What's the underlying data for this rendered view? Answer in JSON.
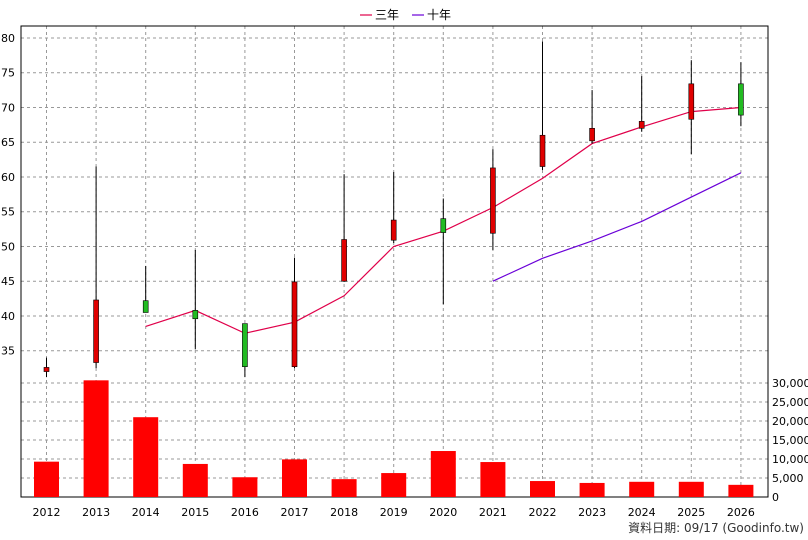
{
  "chart_data": {
    "type": "candlestick+line+bar",
    "legend": [
      {
        "label": "三年",
        "color": "#e0004a"
      },
      {
        "label": "十年",
        "color": "#6a00d8"
      }
    ],
    "years": [
      "2012",
      "2013",
      "2014",
      "2015",
      "2016",
      "2017",
      "2018",
      "2019",
      "2020",
      "2021",
      "2022",
      "2023",
      "2024",
      "2025",
      "2026"
    ],
    "price_axis": {
      "ylim": [
        30.5,
        81
      ],
      "ticks": [
        "35",
        "40",
        "45",
        "50",
        "55",
        "60",
        "65",
        "70",
        "75",
        "80"
      ]
    },
    "candles": [
      {
        "year": "2012",
        "open": 32.0,
        "close": 32.6,
        "high": 34.0,
        "low": 31.2,
        "color": "red"
      },
      {
        "year": "2013",
        "open": 33.3,
        "close": 42.3,
        "high": 61.5,
        "low": 32.5,
        "color": "red"
      },
      {
        "year": "2014",
        "open": 42.2,
        "close": 40.5,
        "high": 47.2,
        "low": 40.5,
        "color": "green"
      },
      {
        "year": "2015",
        "open": 40.8,
        "close": 39.6,
        "high": 49.5,
        "low": 35.2,
        "color": "green"
      },
      {
        "year": "2016",
        "open": 38.9,
        "close": 32.7,
        "high": 38.9,
        "low": 31.2,
        "color": "green"
      },
      {
        "year": "2017",
        "open": 32.7,
        "close": 44.9,
        "high": 48.4,
        "low": 32.5,
        "color": "red"
      },
      {
        "year": "2018",
        "open": 45.0,
        "close": 51.0,
        "high": 60.4,
        "low": 44.9,
        "color": "red"
      },
      {
        "year": "2019",
        "open": 50.9,
        "close": 53.8,
        "high": 60.7,
        "low": 50.5,
        "color": "red"
      },
      {
        "year": "2020",
        "open": 54.0,
        "close": 52.0,
        "high": 56.9,
        "low": 41.7,
        "color": "green"
      },
      {
        "year": "2021",
        "open": 51.9,
        "close": 61.3,
        "high": 64.0,
        "low": 49.5,
        "color": "red"
      },
      {
        "year": "2022",
        "open": 61.5,
        "close": 66.0,
        "high": 79.5,
        "low": 61.0,
        "color": "red"
      },
      {
        "year": "2023",
        "open": 65.2,
        "close": 67.0,
        "high": 72.5,
        "low": 64.8,
        "color": "red"
      },
      {
        "year": "2024",
        "open": 67.0,
        "close": 68.0,
        "high": 74.5,
        "low": 66.5,
        "color": "red"
      },
      {
        "year": "2025",
        "open": 68.3,
        "close": 73.4,
        "high": 76.8,
        "low": 63.3,
        "color": "red"
      },
      {
        "year": "2026",
        "open": 73.4,
        "close": 68.9,
        "high": 76.5,
        "low": 67.3,
        "color": "green"
      }
    ],
    "ma3": {
      "name": "三年",
      "start": "2014",
      "values": [
        38.5,
        40.8,
        37.5,
        39.1,
        42.9,
        50.0,
        52.2,
        55.6,
        59.8,
        64.8,
        67.2,
        69.4,
        70.0
      ]
    },
    "ma10": {
      "name": "十年",
      "start": "2021",
      "values": [
        45.0,
        48.3,
        50.8,
        53.6,
        57.1,
        60.6
      ]
    },
    "volume_axis": {
      "ylim": [
        0,
        30000
      ],
      "ticks": [
        "0",
        "5,000",
        "10,000",
        "15,000",
        "20,000",
        "25,000",
        "30,000"
      ]
    },
    "volumes": [
      9300,
      30700,
      21000,
      8700,
      5200,
      9900,
      4700,
      6300,
      12100,
      9200,
      4200,
      3700,
      4000,
      4000,
      3200
    ],
    "source_note": "資料日期: 09/17 (Goodinfo.tw)"
  }
}
